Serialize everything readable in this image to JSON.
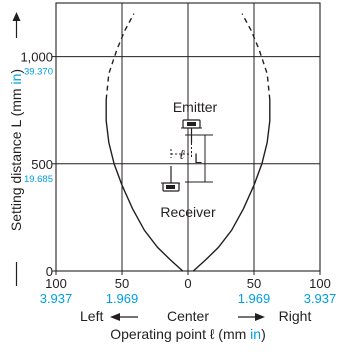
{
  "chart_data": {
    "type": "line",
    "ylabel": {
      "prefix": "Setting distance L (mm ",
      "unit": "in",
      "suffix": ")"
    },
    "xlabel": {
      "prefix": "Operating point ℓ (mm ",
      "unit": "in",
      "suffix": ")"
    },
    "xlim": [
      -100,
      100
    ],
    "ylim": [
      0,
      1250
    ],
    "grid": true,
    "y_ticks": [
      {
        "value": 0,
        "label": "0",
        "inch_label": ""
      },
      {
        "value": 500,
        "label": "500",
        "inch_label": "19.685"
      },
      {
        "value": 1000,
        "label": "1,000",
        "inch_label": "39.370"
      }
    ],
    "x_ticks": [
      {
        "value": -100,
        "label": "100",
        "inch_label": "3.937"
      },
      {
        "value": -50,
        "label": "50",
        "inch_label": "1.969"
      },
      {
        "value": 0,
        "label": "0",
        "inch_label": ""
      },
      {
        "value": 50,
        "label": "50",
        "inch_label": "1.969"
      },
      {
        "value": 100,
        "label": "100",
        "inch_label": "3.937"
      }
    ],
    "direction_labels": {
      "left": "Left",
      "center": "Center",
      "right": "Right"
    },
    "series": [
      {
        "side": "right",
        "solid": [
          [
            4,
            0
          ],
          [
            13,
            50
          ],
          [
            23,
            110
          ],
          [
            33,
            190
          ],
          [
            42,
            290
          ],
          [
            50,
            400
          ],
          [
            56,
            500
          ],
          [
            60,
            600
          ],
          [
            62,
            700
          ],
          [
            62,
            800
          ]
        ],
        "dashed": [
          [
            62,
            800
          ],
          [
            60,
            920
          ],
          [
            54,
            1030
          ],
          [
            48,
            1120
          ],
          [
            41,
            1200
          ]
        ]
      },
      {
        "side": "left",
        "solid": [
          [
            -4,
            0
          ],
          [
            -13,
            50
          ],
          [
            -23,
            110
          ],
          [
            -33,
            190
          ],
          [
            -42,
            290
          ],
          [
            -50,
            400
          ],
          [
            -56,
            500
          ],
          [
            -60,
            600
          ],
          [
            -62,
            700
          ],
          [
            -62,
            800
          ]
        ],
        "dashed": [
          [
            -62,
            800
          ],
          [
            -60,
            920
          ],
          [
            -54,
            1030
          ],
          [
            -48,
            1120
          ],
          [
            -41,
            1200
          ]
        ]
      }
    ],
    "annotations": {
      "emitter": "Emitter",
      "receiver": "Receiver",
      "offset_symbol": "ℓ",
      "distance_symbol": "L"
    }
  }
}
